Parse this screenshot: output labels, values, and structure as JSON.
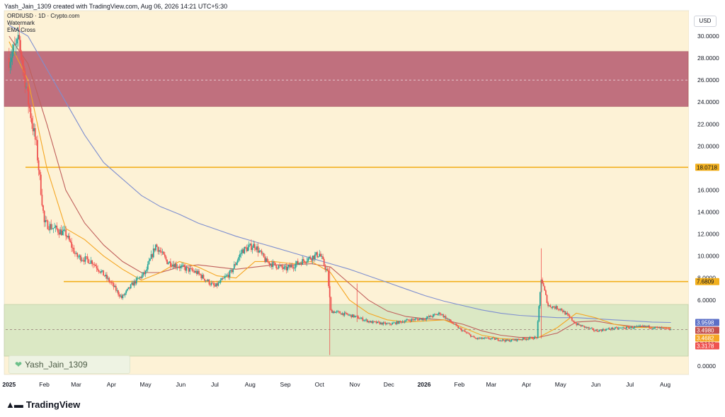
{
  "header": {
    "caption": "Yash_Jain_1309 created with TradingView.com, Aug 06, 2026 14:21 UTC+5:30"
  },
  "legend": {
    "symbol": "ORDIUSD · 1D · Crypto.com",
    "indicator_1": "Watermark",
    "indicator_2": "EMA Cross"
  },
  "currency_button": "USD",
  "watermark": {
    "text": "Yash_Jain_1309",
    "icon": "heart-icon"
  },
  "footer": {
    "logo_text": "TradingView",
    "logo_icon": "tradingview-logo-icon"
  },
  "colors": {
    "background": "#fdf2d6",
    "supply_zone": "#c0707e",
    "demand_zone": "#dbe8c4",
    "level_line": "#f2b01e",
    "up_candle": "#26a69a",
    "down_candle": "#ef5350",
    "ema_fast": "#f5a623",
    "ema_mid": "#c0605c",
    "ema_slow": "#7e8fd0"
  },
  "chart_data": {
    "type": "candlestick",
    "title": "ORDIUSD · 1D · Crypto.com",
    "ylim": [
      0,
      32
    ],
    "y_ticks": [
      "0.0000",
      "2.0000",
      "4.0000",
      "6.0000",
      "8.0000",
      "10.0000",
      "12.0000",
      "14.0000",
      "16.0000",
      "18.0000",
      "20.0000",
      "22.0000",
      "24.0000",
      "26.0000",
      "28.0000",
      "30.0000"
    ],
    "x_ticks": [
      "2025",
      "Feb",
      "Mar",
      "Apr",
      "May",
      "Jun",
      "Jul",
      "Aug",
      "Sep",
      "Oct",
      "Nov",
      "Dec",
      "2026",
      "Feb",
      "Mar",
      "Apr",
      "May",
      "Jun",
      "Jul",
      "Aug"
    ],
    "zones": [
      {
        "name": "supply",
        "low": 23.6,
        "high": 28.6
      },
      {
        "name": "demand",
        "low": 0.9,
        "high": 5.6
      }
    ],
    "horizontal_levels": [
      {
        "value": 18.0718,
        "label": "18.0718"
      },
      {
        "value": 7.6809,
        "label": "7.6809"
      }
    ],
    "price_tags": [
      {
        "value": 3.9598,
        "label": "3.9598",
        "color": "#5b6fc7"
      },
      {
        "value": 3.498,
        "label": "3.4980",
        "color": "#c4504c"
      },
      {
        "value": 3.4682,
        "label": "3.4682",
        "color": "#f5a623"
      },
      {
        "value": 3.3178,
        "label": "3.3178",
        "color": "#ef5350"
      }
    ],
    "dashed_levels": [
      26.0,
      3.3178
    ],
    "price_path": [
      [
        "2025-01-01",
        28.0
      ],
      [
        "2025-01-10",
        29.5
      ],
      [
        "2025-01-18",
        24.0
      ],
      [
        "2025-01-25",
        20.0
      ],
      [
        "2025-02-01",
        13.0
      ],
      [
        "2025-02-10",
        12.5
      ],
      [
        "2025-02-20",
        12.0
      ],
      [
        "2025-03-01",
        10.0
      ],
      [
        "2025-03-15",
        9.5
      ],
      [
        "2025-04-01",
        7.5
      ],
      [
        "2025-04-10",
        6.2
      ],
      [
        "2025-04-20",
        7.5
      ],
      [
        "2025-05-01",
        8.5
      ],
      [
        "2025-05-10",
        11.0
      ],
      [
        "2025-05-20",
        9.5
      ],
      [
        "2025-06-01",
        9.0
      ],
      [
        "2025-06-15",
        8.5
      ],
      [
        "2025-07-01",
        7.2
      ],
      [
        "2025-07-15",
        8.5
      ],
      [
        "2025-07-25",
        10.5
      ],
      [
        "2025-08-05",
        11.0
      ],
      [
        "2025-08-15",
        9.5
      ],
      [
        "2025-09-01",
        8.8
      ],
      [
        "2025-09-15",
        9.5
      ],
      [
        "2025-10-01",
        10.2
      ],
      [
        "2025-10-08",
        8.5
      ],
      [
        "2025-10-11",
        5.0
      ],
      [
        "2025-10-20",
        4.8
      ],
      [
        "2025-11-01",
        4.5
      ],
      [
        "2025-11-15",
        4.0
      ],
      [
        "2025-12-01",
        3.8
      ],
      [
        "2025-12-20",
        4.2
      ],
      [
        "2026-01-01",
        4.3
      ],
      [
        "2026-01-15",
        4.8
      ],
      [
        "2026-02-01",
        3.4
      ],
      [
        "2026-02-15",
        2.5
      ],
      [
        "2026-03-01",
        2.5
      ],
      [
        "2026-03-15",
        2.3
      ],
      [
        "2026-04-01",
        2.5
      ],
      [
        "2026-04-10",
        2.6
      ],
      [
        "2026-04-14",
        8.0
      ],
      [
        "2026-04-20",
        5.5
      ],
      [
        "2026-05-01",
        5.2
      ],
      [
        "2026-05-15",
        3.8
      ],
      [
        "2026-06-01",
        3.2
      ],
      [
        "2026-06-15",
        3.4
      ],
      [
        "2026-07-01",
        3.5
      ],
      [
        "2026-07-15",
        3.6
      ],
      [
        "2026-08-06",
        3.3
      ]
    ],
    "ema_fast": [
      29.5,
      26.0,
      18.0,
      12.5,
      11.5,
      10.0,
      8.8,
      7.8,
      8.5,
      9.5,
      9.0,
      8.2,
      8.0,
      9.5,
      9.5,
      9.3,
      9.5,
      8.5,
      6.0,
      4.8,
      4.2,
      4.0,
      4.1,
      4.2,
      3.5,
      2.8,
      2.5,
      2.4,
      2.6,
      3.5,
      4.8,
      4.4,
      3.8,
      3.5,
      3.5,
      3.47
    ],
    "ema_mid": [
      30.0,
      27.5,
      22.0,
      16.0,
      13.0,
      11.0,
      9.5,
      8.5,
      8.5,
      9.0,
      9.2,
      9.0,
      8.8,
      9.0,
      9.2,
      9.2,
      9.3,
      9.0,
      7.5,
      6.0,
      5.0,
      4.5,
      4.3,
      4.2,
      3.8,
      3.2,
      2.8,
      2.6,
      2.6,
      3.0,
      4.0,
      4.1,
      3.8,
      3.6,
      3.55,
      3.5
    ],
    "ema_slow": [
      31.0,
      30.0,
      27.0,
      24.0,
      21.0,
      18.5,
      17.0,
      15.5,
      14.5,
      13.8,
      13.0,
      12.4,
      11.8,
      11.3,
      10.8,
      10.3,
      9.8,
      9.3,
      8.8,
      8.2,
      7.6,
      7.0,
      6.4,
      5.9,
      5.5,
      5.1,
      4.8,
      4.6,
      4.5,
      4.4,
      4.4,
      4.3,
      4.2,
      4.1,
      4.0,
      3.96
    ]
  }
}
